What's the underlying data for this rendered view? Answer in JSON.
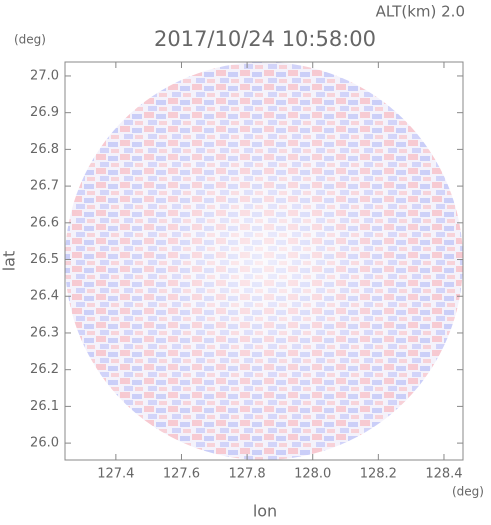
{
  "chart_data": {
    "type": "ppi",
    "title": "2017/10/24 10:58:00",
    "subtitle": "ALT(km) 2.0",
    "x_label": "lon",
    "y_label": "lat",
    "x_unit": "(deg)",
    "y_unit": "(deg)",
    "xlim": [
      127.245,
      128.458
    ],
    "ylim": [
      25.954,
      27.038
    ],
    "xticks": [
      127.4,
      127.6,
      127.8,
      {
        "value": 128.0,
        "label": "128.0"
      },
      128.2,
      128.4
    ],
    "yticks": [
      {
        "value": 26.0,
        "label": "26.0"
      },
      26.1,
      26.2,
      26.3,
      26.4,
      26.5,
      26.6,
      26.7,
      26.8,
      26.9,
      {
        "value": 27.0,
        "label": "27.0"
      }
    ]
  }
}
